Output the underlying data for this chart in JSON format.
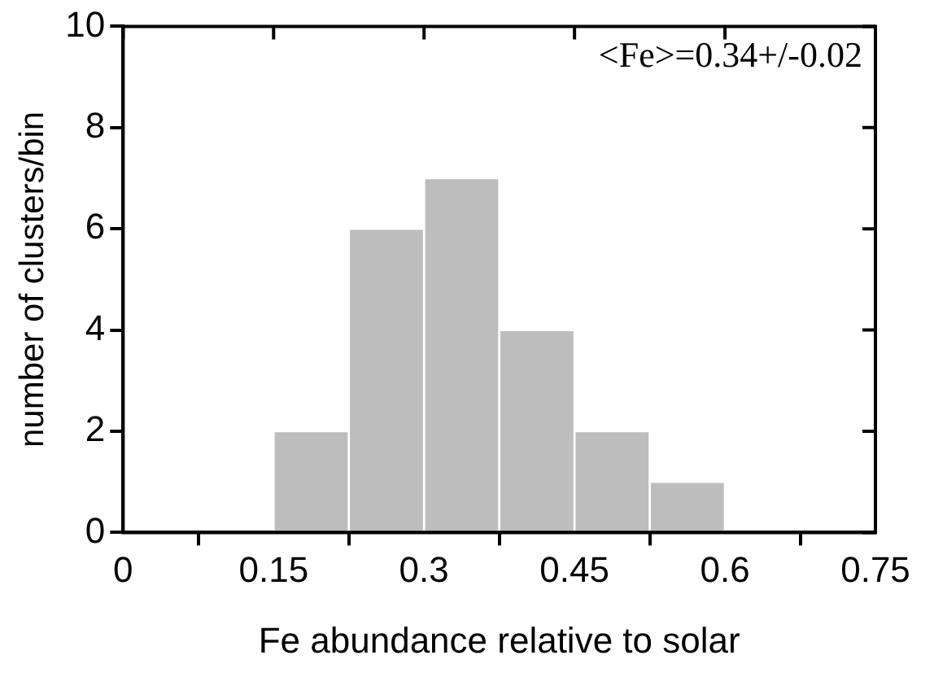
{
  "chart_data": {
    "type": "histogram",
    "xlabel": "Fe abundance relative to solar",
    "ylabel": "number of clusters/bin",
    "bins": [
      0.15,
      0.225,
      0.3,
      0.375,
      0.45,
      0.525,
      0.6
    ],
    "values": [
      2,
      6,
      7,
      4,
      2,
      1
    ],
    "color": "#bdbdbd",
    "xlim": [
      0,
      0.75
    ],
    "xticks": [
      0,
      0.15,
      0.3,
      0.45,
      0.6,
      0.75
    ],
    "ylim": [
      0,
      10
    ],
    "yticks": [
      0,
      2,
      4,
      6,
      8,
      10
    ],
    "grid": false,
    "legend": false,
    "annotations": [
      "<Fe>=0.34+/-0.02"
    ]
  }
}
